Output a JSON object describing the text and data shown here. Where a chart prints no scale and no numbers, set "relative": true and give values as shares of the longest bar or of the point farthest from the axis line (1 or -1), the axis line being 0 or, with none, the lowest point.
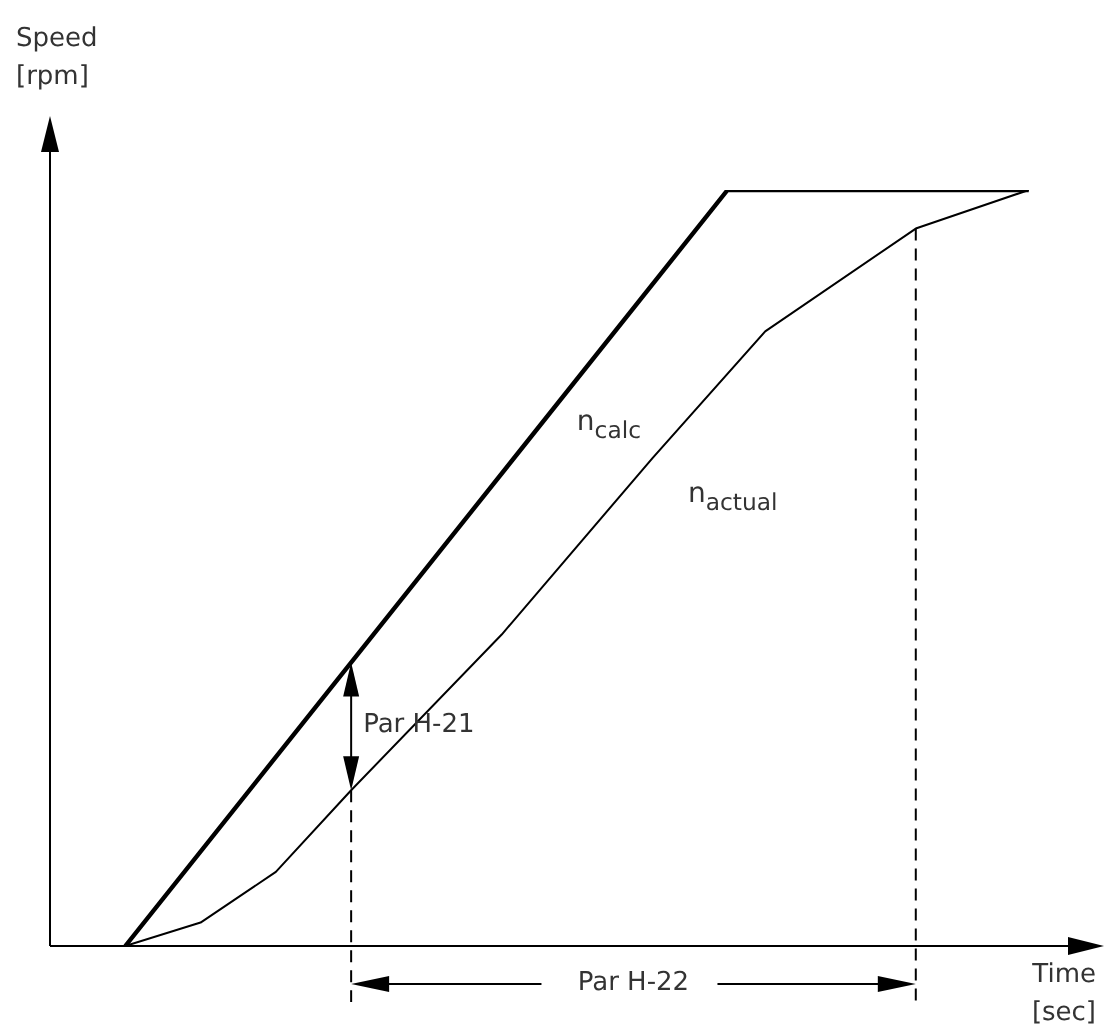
{
  "chart_data": {
    "type": "line",
    "relative": true,
    "xlabel": "Time\n[sec]",
    "ylabel": "Speed\n[rpm]",
    "tick_labels": false,
    "legend": false,
    "marker": "none",
    "categories": [
      null,
      null,
      null,
      null,
      null,
      null,
      null,
      null,
      null,
      null,
      null,
      null,
      null,
      null,
      null,
      null,
      null,
      null,
      null,
      null,
      null,
      null,
      null,
      null,
      null,
      null,
      null,
      null,
      null
    ],
    "series": [
      {
        "name": "n$_{calc}$",
        "color": "#000000",
        "values": [
          null,
          null,
          0,
          null,
          null,
          null,
          null,
          null,
          null,
          null,
          null,
          null,
          null,
          null,
          null,
          null,
          null,
          null,
          1,
          null,
          null,
          null,
          null,
          null,
          null,
          null,
          1,
          null,
          null
        ]
      },
      {
        "name": "n$_{actual}$",
        "color": "#000000",
        "values": [
          null,
          null,
          0,
          null,
          0.031,
          null,
          0.098,
          null,
          0.206,
          null,
          null,
          null,
          0.412,
          null,
          null,
          null,
          0.645,
          null,
          null,
          0.813,
          null,
          null,
          null,
          0.949,
          null,
          null,
          1,
          null,
          null
        ]
      }
    ],
    "annotations": [
      "Par H-21",
      "Par H-22"
    ]
  }
}
